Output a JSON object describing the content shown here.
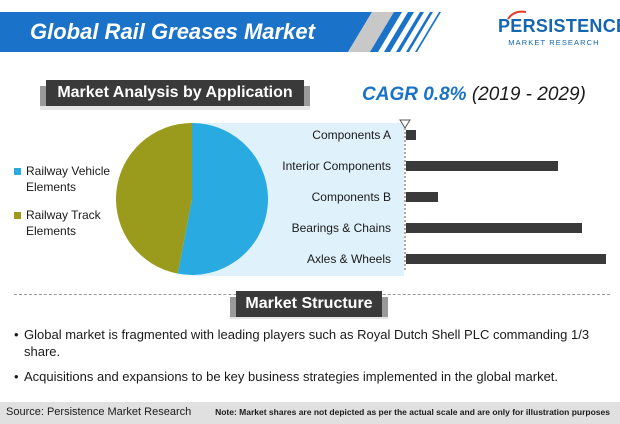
{
  "header": {
    "title": "Global Rail Greases Market",
    "brand_color": "#1a73c9"
  },
  "logo": {
    "name": "PERSISTENCE",
    "subtitle": "MARKET RESEARCH"
  },
  "sections": {
    "application_label": "Market Analysis by Application",
    "structure_label": "Market Structure"
  },
  "cagr": {
    "label": "CAGR 0.8%",
    "period": "(2019 - 2029)"
  },
  "chart_data": [
    {
      "type": "pie",
      "categories": [
        "Railway Vehicle Elements",
        "Railway Track Elements"
      ],
      "values": [
        53,
        47
      ],
      "colors": [
        "#29abe2",
        "#9a9a1c"
      ],
      "legend_placement": "left"
    },
    {
      "type": "bar",
      "orientation": "horizontal",
      "categories": [
        "Components A",
        "Interior Components",
        "Components B",
        "Bearings & Chains",
        "Axles & Wheels"
      ],
      "values": [
        5,
        76,
        16,
        88,
        100
      ],
      "xlim": [
        0,
        100
      ],
      "bar_color": "#3a3a3a",
      "grid": false
    }
  ],
  "bullets": [
    "Global market is fragmented with leading players such as Royal Dutch Shell PLC commanding 1/3 share.",
    "Acquisitions and expansions to be key business strategies implemented in the global market."
  ],
  "footer": {
    "source": "Source: Persistence Market Research",
    "note": "Note: Market shares are not depicted as per the actual scale and are only for illustration purposes"
  }
}
